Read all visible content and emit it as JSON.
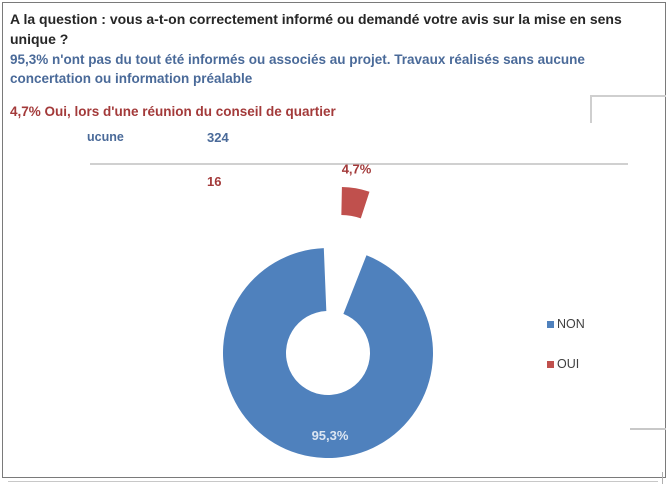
{
  "header": {
    "question": "A la question : vous a-t-on correctement informé ou demandé votre avis sur la mise en sens unique ?",
    "non_summary": "95,3% n'ont pas du tout été informés ou associés au projet. Travaux réalisés sans aucune concertation ou information préalable",
    "oui_summary": "4,7% Oui, lors d'une réunion du conseil de quartier"
  },
  "table_fragment": {
    "row1_label": "ucune",
    "row1_count": "324",
    "row2_count": "16"
  },
  "colors": {
    "non": "#4f81bd",
    "oui": "#c0504d"
  },
  "chart_data": {
    "type": "pie",
    "variant": "donut",
    "title": "",
    "slices": [
      {
        "label": "NON",
        "value": 95.3,
        "count": 324,
        "data_label": "95,3%"
      },
      {
        "label": "OUI",
        "value": 4.7,
        "count": 16,
        "data_label": "4,7%",
        "exploded": true
      }
    ],
    "legend": {
      "placement": "right",
      "entries": [
        "NON",
        "OUI"
      ]
    }
  }
}
